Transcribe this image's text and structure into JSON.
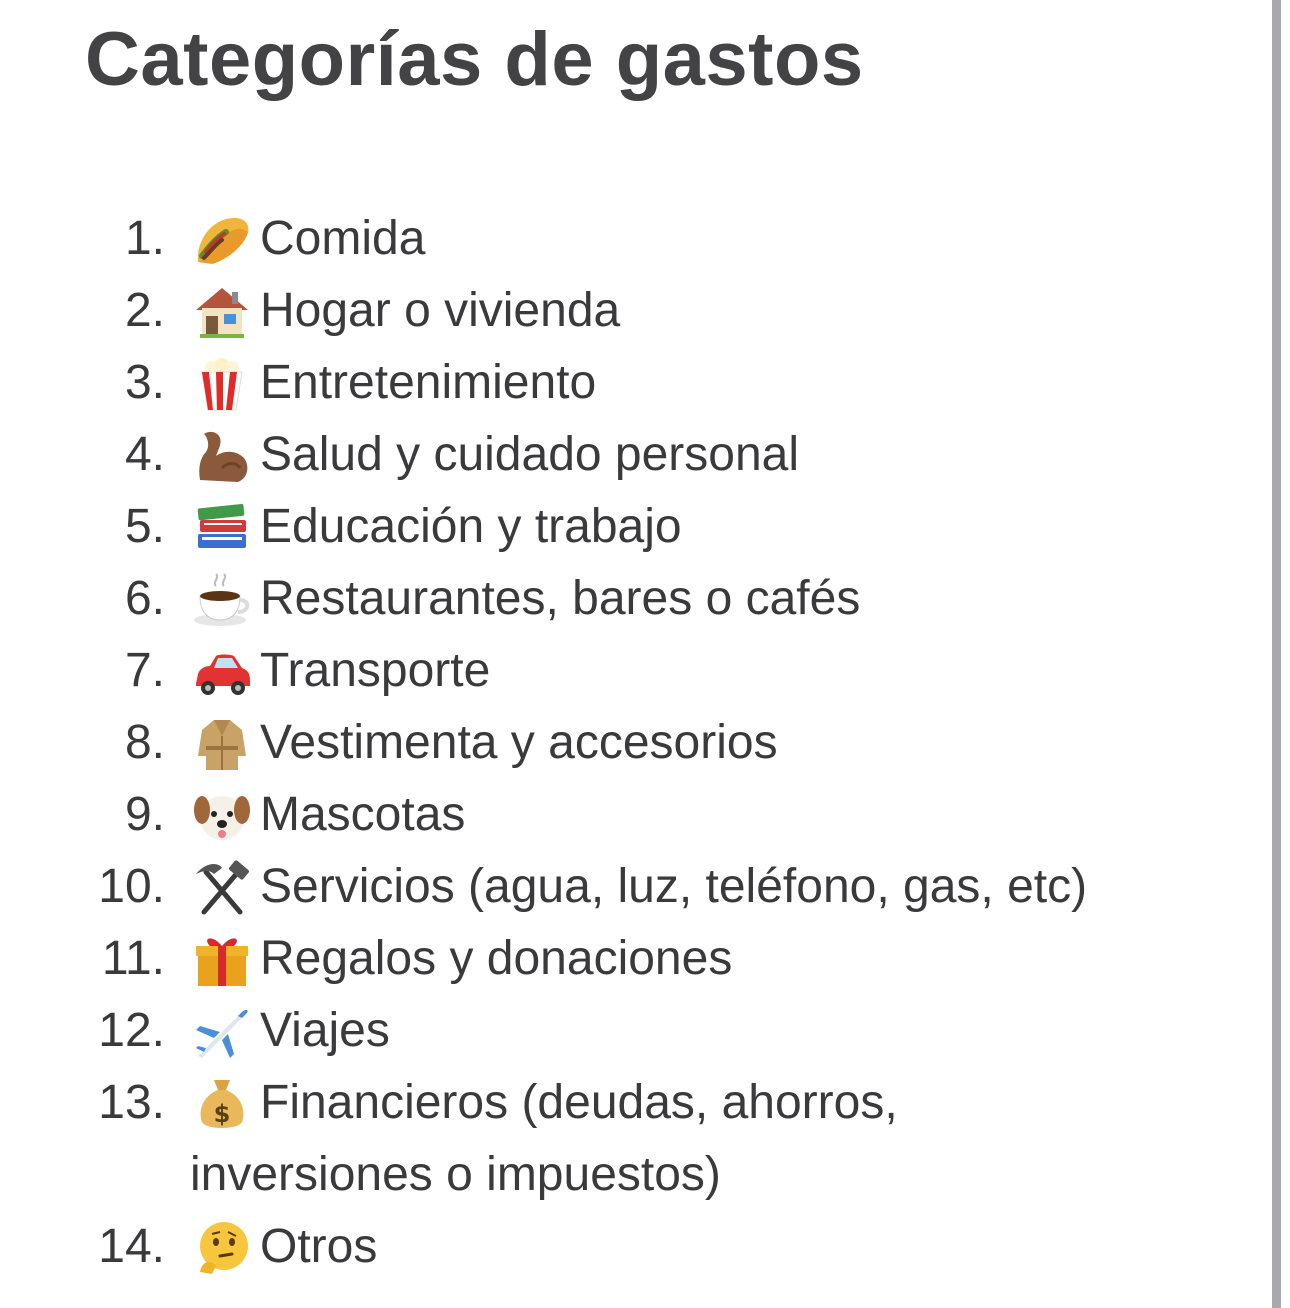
{
  "title": "Categorías de gastos",
  "items": [
    {
      "number": "1.",
      "icon": "taco-icon",
      "label": "Comida"
    },
    {
      "number": "2.",
      "icon": "house-icon",
      "label": "Hogar o vivienda"
    },
    {
      "number": "3.",
      "icon": "popcorn-icon",
      "label": "Entretenimiento"
    },
    {
      "number": "4.",
      "icon": "flexed-biceps-icon",
      "label": "Salud y cuidado personal"
    },
    {
      "number": "5.",
      "icon": "books-icon",
      "label": "Educación y trabajo"
    },
    {
      "number": "6.",
      "icon": "hot-beverage-icon",
      "label": "Restaurantes, bares o cafés"
    },
    {
      "number": "7.",
      "icon": "car-icon",
      "label": "Transporte"
    },
    {
      "number": "8.",
      "icon": "coat-icon",
      "label": "Vestimenta y accesorios"
    },
    {
      "number": "9.",
      "icon": "dog-face-icon",
      "label": "Mascotas"
    },
    {
      "number": "10.",
      "icon": "hammer-and-pick-icon",
      "label": "Servicios (agua, luz, teléfono, gas, etc)"
    },
    {
      "number": "11.",
      "icon": "gift-icon",
      "label": "Regalos y donaciones"
    },
    {
      "number": "12.",
      "icon": "airplane-icon",
      "label": "Viajes"
    },
    {
      "number": "13.",
      "icon": "money-bag-icon",
      "label": "Financieros (deudas, ahorros, inversiones o impuestos)"
    },
    {
      "number": "14.",
      "icon": "thinking-face-icon",
      "label": "Otros"
    }
  ]
}
